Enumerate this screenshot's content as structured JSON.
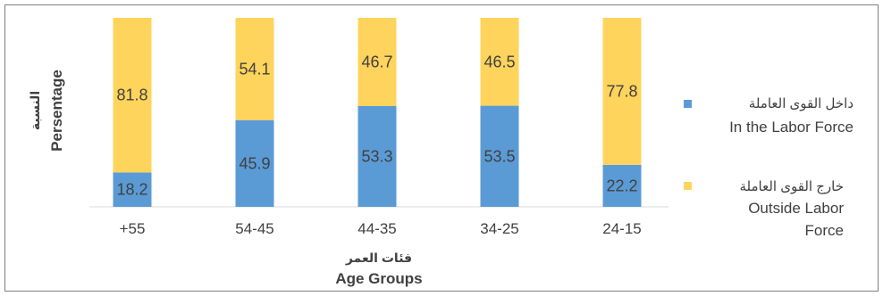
{
  "chart_data": {
    "type": "bar",
    "stacked": true,
    "categories": [
      "+55",
      "54-45",
      "44-35",
      "34-25",
      "24-15"
    ],
    "series": [
      {
        "name": "داخل القوى العاملة In the Labor Force",
        "name_ar": "داخل القوى العاملة",
        "name_en": "In the Labor Force",
        "color": "#5b9bd5",
        "values": [
          18.2,
          45.9,
          53.3,
          53.5,
          22.2
        ]
      },
      {
        "name": "خارج القوى العاملة Outside Labor Force",
        "name_ar": "خارج القوى العاملة",
        "name_en_line1": "Outside Labor",
        "name_en_line2": "Force",
        "color": "#ffd45c",
        "values": [
          81.8,
          54.1,
          46.7,
          46.5,
          77.8
        ]
      }
    ],
    "xlabel_ar": "فئات العمر",
    "xlabel_en": "Age Groups",
    "ylabel_ar": "النسبة",
    "ylabel_en": "Persentage",
    "ylim": [
      0,
      100
    ],
    "grid": false,
    "legend": "right"
  }
}
